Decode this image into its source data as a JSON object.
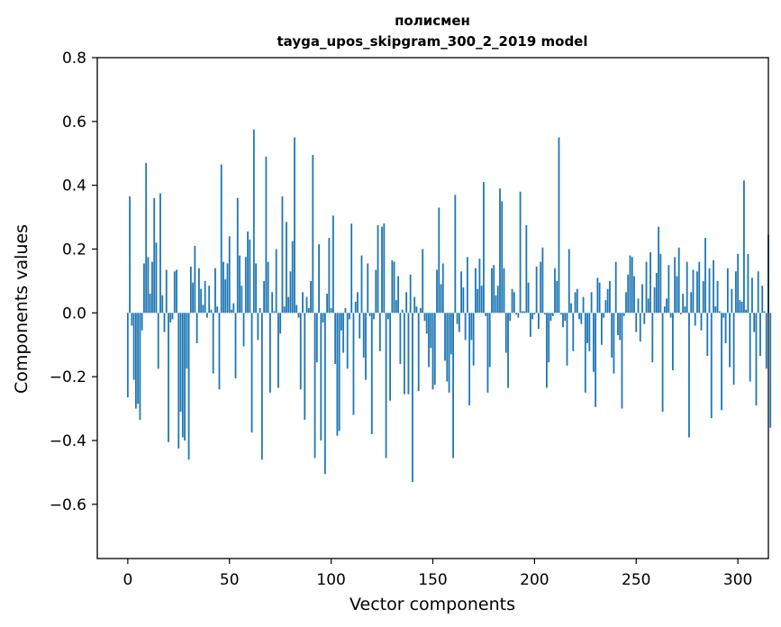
{
  "chart_data": {
    "type": "bar",
    "title": "полисмен",
    "subtitle": "tayga_upos_skipgram_300_2_2019 model",
    "xlabel": "Vector components",
    "ylabel": "Components values",
    "xlim": [
      -15,
      315
    ],
    "ylim": [
      -0.77,
      0.8
    ],
    "xticks": [
      0,
      50,
      100,
      150,
      200,
      250,
      300
    ],
    "xtick_labels": [
      "0",
      "50",
      "100",
      "150",
      "200",
      "250",
      "300"
    ],
    "yticks": [
      -0.6,
      -0.4,
      -0.2,
      0.0,
      0.2,
      0.4,
      0.6,
      0.8
    ],
    "ytick_labels": [
      "−0.6",
      "−0.4",
      "−0.2",
      "0.0",
      "0.2",
      "0.4",
      "0.6",
      "0.8"
    ],
    "bar_color": "#1f77b4",
    "grid": false,
    "values": [
      -0.265,
      0.365,
      -0.04,
      -0.21,
      -0.3,
      -0.285,
      -0.335,
      -0.055,
      0.155,
      0.47,
      0.175,
      0.06,
      0.16,
      0.36,
      0.22,
      -0.175,
      0.375,
      0.055,
      -0.06,
      0.135,
      -0.405,
      -0.03,
      -0.02,
      0.13,
      0.135,
      -0.425,
      -0.31,
      -0.39,
      -0.4,
      -0.175,
      -0.46,
      0.145,
      0.095,
      0.21,
      -0.095,
      0.14,
      0.075,
      0.025,
      0.1,
      -0.015,
      0.085,
      0.01,
      -0.19,
      0.14,
      0.02,
      -0.24,
      0.465,
      0.16,
      0.105,
      0.155,
      0.24,
      0.01,
      0.03,
      -0.205,
      0.36,
      0.18,
      0.085,
      -0.105,
      0.175,
      0.255,
      0.23,
      -0.375,
      0.575,
      0.155,
      -0.085,
      0.015,
      -0.46,
      0.1,
      0.49,
      0.16,
      -0.25,
      0.065,
      0.005,
      0.2,
      -0.235,
      -0.065,
      0.365,
      0.02,
      0.285,
      0.05,
      0.13,
      0.225,
      0.55,
      0.025,
      -0.015,
      -0.24,
      0.065,
      -0.335,
      0.05,
      0.015,
      0.1,
      0.495,
      -0.455,
      -0.155,
      0.215,
      -0.4,
      -0.03,
      -0.505,
      0.06,
      0.235,
      0.015,
      0.305,
      -0.16,
      -0.385,
      -0.37,
      -0.055,
      -0.125,
      0.015,
      -0.175,
      -0.02,
      0.28,
      -0.32,
      0.035,
      0.065,
      -0.08,
      0.18,
      -0.14,
      -0.21,
      0.155,
      -0.01,
      -0.38,
      -0.02,
      0.135,
      0.275,
      -0.12,
      0.27,
      0.28,
      -0.455,
      -0.02,
      -0.275,
      0.165,
      0.16,
      0.04,
      0.115,
      -0.16,
      0.01,
      -0.255,
      0.065,
      -0.255,
      0.12,
      -0.53,
      0.05,
      0.02,
      -0.245,
      0.015,
      0.2,
      -0.025,
      -0.065,
      -0.17,
      -0.11,
      -0.24,
      -0.225,
      0.135,
      0.33,
      0.09,
      0.155,
      -0.15,
      -0.215,
      -0.25,
      -0.13,
      -0.455,
      0.37,
      -0.035,
      -0.06,
      0.13,
      0.08,
      -0.085,
      0.175,
      -0.29,
      -0.085,
      -0.165,
      0.14,
      0.075,
      0.17,
      0.085,
      0.41,
      -0.01,
      -0.25,
      -0.17,
      0.14,
      0.15,
      0.055,
      0.085,
      0.39,
      0.35,
      0.14,
      -0.125,
      -0.235,
      -0.025,
      0.075,
      0.065,
      -0.005,
      -0.015,
      0.38,
      0.005,
      0.005,
      0.275,
      0.095,
      -0.075,
      -0.02,
      -0.005,
      0.145,
      -0.05,
      0.16,
      0.205,
      -0.005,
      -0.235,
      -0.155,
      -0.025,
      -0.01,
      0.14,
      0.1,
      0.55,
      -0.005,
      -0.045,
      -0.025,
      -0.165,
      0.2,
      0.03,
      -0.12,
      0.065,
      0.075,
      -0.02,
      -0.035,
      0.05,
      -0.25,
      -0.095,
      -0.12,
      0.065,
      -0.185,
      -0.295,
      0.11,
      0.095,
      -0.1,
      -0.015,
      0.04,
      0.075,
      0.1,
      -0.14,
      -0.19,
      0.16,
      -0.07,
      -0.085,
      -0.3,
      -0.01,
      0.065,
      0.12,
      0.18,
      0.175,
      0.115,
      -0.06,
      0.045,
      -0.09,
      0.09,
      -0.035,
      0.16,
      0.045,
      0.19,
      -0.155,
      0.08,
      0.125,
      0.27,
      0.185,
      -0.31,
      0.02,
      0.045,
      0.15,
      -0.015,
      -0.18,
      0.175,
      0.115,
      0.205,
      -0.005,
      0.06,
      0.02,
      0.16,
      -0.39,
      0.065,
      0.135,
      -0.04,
      0.13,
      0.16,
      -0.055,
      0.1,
      0.235,
      -0.135,
      0.14,
      -0.33,
      0.165,
      0.02,
      0.1,
      0.005,
      -0.305,
      -0.015,
      -0.095,
      0.14,
      -0.17,
      0.075,
      -0.225,
      0.13,
      0.185,
      0.04,
      0.035,
      0.415,
      0.01,
      0.185,
      -0.215,
      0.11,
      -0.06,
      -0.29,
      0.13,
      -0.135,
      0.085,
      0.005,
      -0.175,
      0.245,
      -0.36
    ]
  }
}
